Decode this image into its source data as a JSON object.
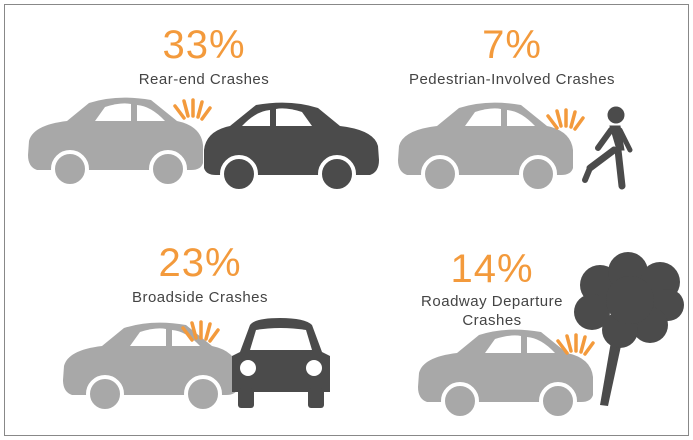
{
  "panels": [
    {
      "percent": "33%",
      "label": "Rear-end Crashes"
    },
    {
      "percent": "7%",
      "label": "Pedestrian-Involved Crashes"
    },
    {
      "percent": "23%",
      "label": "Broadside Crashes"
    },
    {
      "percent": "14%",
      "label_line1": "Roadway Departure",
      "label_line2": "Crashes"
    }
  ]
}
